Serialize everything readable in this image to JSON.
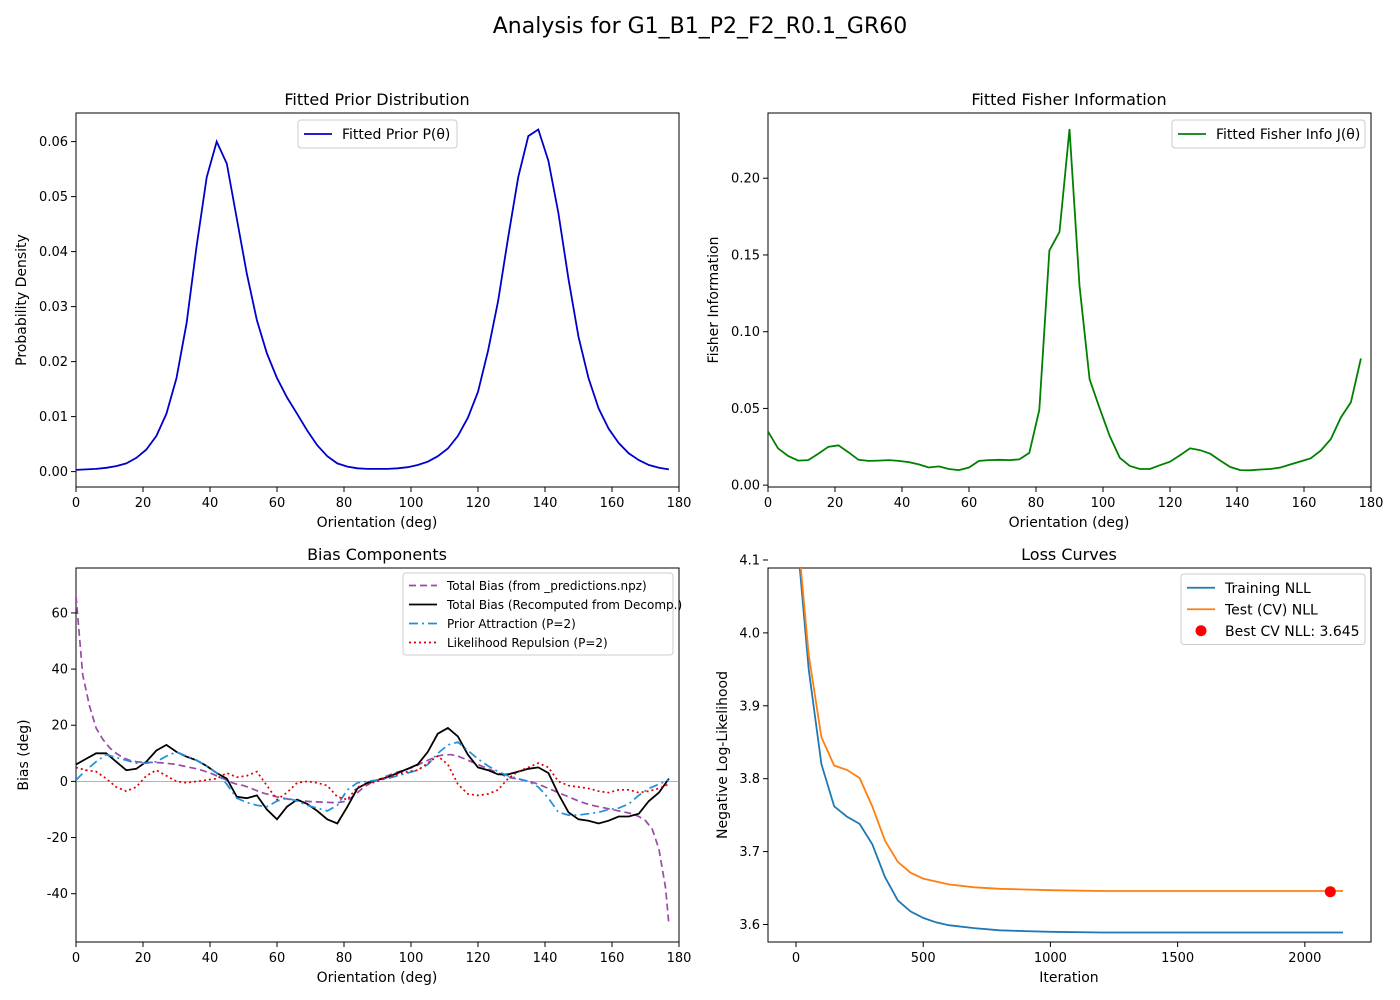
{
  "suptitle": "Analysis for G1_B1_P2_F2_R0.1_GR60",
  "chart_data": [
    {
      "type": "line",
      "title": "Fitted Prior Distribution",
      "xlabel": "Orientation (deg)",
      "ylabel": "Probability Density",
      "xlim": [
        0,
        180
      ],
      "ylim": [
        -0.0028,
        0.0652
      ],
      "xticks": [
        0,
        20,
        40,
        60,
        80,
        100,
        120,
        140,
        160,
        180
      ],
      "yticks": [
        0.0,
        0.01,
        0.02,
        0.03,
        0.04,
        0.05,
        0.06
      ],
      "ytick_decimals": 2,
      "grid": false,
      "legend": "top-center",
      "series": [
        {
          "name": "Fitted Prior P(θ)",
          "color": "#0000cc",
          "style": "solid",
          "x": [
            0,
            3,
            6,
            9,
            12,
            15,
            18,
            21,
            24,
            27,
            30,
            33,
            36,
            39,
            42,
            45,
            48,
            51,
            54,
            57,
            60,
            63,
            66,
            69,
            72,
            75,
            78,
            81,
            84,
            87,
            90,
            93,
            96,
            99,
            102,
            105,
            108,
            111,
            114,
            117,
            120,
            123,
            126,
            129,
            132,
            135,
            138,
            141,
            144,
            147,
            150,
            153,
            156,
            159,
            162,
            165,
            168,
            171,
            174,
            177
          ],
          "y": [
            0.0003,
            0.0004,
            0.0005,
            0.0007,
            0.001,
            0.0015,
            0.0025,
            0.004,
            0.0065,
            0.0105,
            0.017,
            0.027,
            0.041,
            0.0535,
            0.06,
            0.056,
            0.046,
            0.036,
            0.0275,
            0.0215,
            0.017,
            0.0135,
            0.0105,
            0.0075,
            0.0048,
            0.0028,
            0.0015,
            0.0009,
            0.0006,
            0.0005,
            0.0005,
            0.0005,
            0.0006,
            0.0008,
            0.0012,
            0.0018,
            0.0028,
            0.0042,
            0.0065,
            0.0098,
            0.0145,
            0.022,
            0.031,
            0.0425,
            0.0535,
            0.061,
            0.0622,
            0.0565,
            0.047,
            0.035,
            0.0245,
            0.017,
            0.0115,
            0.0078,
            0.0052,
            0.0033,
            0.0021,
            0.0012,
            0.0007,
            0.0004
          ]
        }
      ]
    },
    {
      "type": "line",
      "title": "Fitted Fisher Information",
      "xlabel": "Orientation (deg)",
      "ylabel": "Fisher Information",
      "xlim": [
        0,
        180
      ],
      "ylim": [
        -0.0012,
        0.2425
      ],
      "xticks": [
        0,
        20,
        40,
        60,
        80,
        100,
        120,
        140,
        160,
        180
      ],
      "yticks": [
        0.0,
        0.05,
        0.1,
        0.15,
        0.2
      ],
      "ytick_decimals": 2,
      "grid": false,
      "legend": "top-right",
      "series": [
        {
          "name": "Fitted Fisher Info J(θ)",
          "color": "#008000",
          "style": "solid",
          "x": [
            0,
            3,
            6,
            9,
            12,
            15,
            18,
            21,
            24,
            27,
            30,
            33,
            36,
            39,
            42,
            45,
            48,
            51,
            54,
            57,
            60,
            63,
            66,
            69,
            72,
            75,
            78,
            81,
            84,
            87,
            90,
            93,
            96,
            99,
            102,
            105,
            108,
            111,
            114,
            117,
            120,
            123,
            126,
            129,
            132,
            135,
            138,
            141,
            144,
            147,
            150,
            153,
            156,
            159,
            162,
            165,
            168,
            171,
            174,
            177
          ],
          "y": [
            0.035,
            0.024,
            0.019,
            0.016,
            0.0163,
            0.0205,
            0.025,
            0.026,
            0.0215,
            0.0165,
            0.0158,
            0.016,
            0.0163,
            0.0158,
            0.015,
            0.0135,
            0.0115,
            0.0122,
            0.0105,
            0.0098,
            0.0115,
            0.0158,
            0.0163,
            0.0165,
            0.0163,
            0.0168,
            0.021,
            0.049,
            0.153,
            0.165,
            0.232,
            0.13,
            0.069,
            0.05,
            0.032,
            0.0178,
            0.0125,
            0.0105,
            0.0105,
            0.013,
            0.0153,
            0.0195,
            0.024,
            0.0228,
            0.0205,
            0.016,
            0.0118,
            0.0098,
            0.0097,
            0.0102,
            0.0105,
            0.0115,
            0.0135,
            0.0155,
            0.0175,
            0.0225,
            0.03,
            0.044,
            0.054,
            0.0825
          ]
        }
      ]
    },
    {
      "type": "line",
      "title": "Bias Components",
      "xlabel": "Orientation (deg)",
      "ylabel": "Bias (deg)",
      "xlim": [
        0,
        180
      ],
      "ylim": [
        -57.2,
        76
      ],
      "xticks": [
        0,
        20,
        40,
        60,
        80,
        100,
        120,
        140,
        160,
        180
      ],
      "yticks": [
        -40,
        -20,
        0,
        20,
        40,
        60
      ],
      "ytick_decimals": 0,
      "grid": false,
      "zero_line": true,
      "legend": "top-right",
      "series": [
        {
          "name": "Total Bias (from _predictions.npz)",
          "color": "#9b4aa8",
          "style": "dashed",
          "x": [
            0,
            2,
            4,
            6,
            8,
            10,
            12,
            14,
            16,
            18,
            20,
            22,
            24,
            26,
            28,
            30,
            32,
            34,
            36,
            38,
            40,
            42,
            44,
            46,
            48,
            50,
            52,
            54,
            56,
            58,
            60,
            62,
            64,
            66,
            68,
            70,
            72,
            74,
            76,
            78,
            80,
            82,
            84,
            86,
            88,
            90,
            92,
            94,
            96,
            98,
            100,
            102,
            104,
            106,
            108,
            110,
            112,
            114,
            116,
            118,
            120,
            122,
            124,
            126,
            128,
            130,
            132,
            134,
            136,
            138,
            140,
            142,
            144,
            146,
            148,
            150,
            152,
            154,
            156,
            158,
            160,
            162,
            164,
            166,
            168,
            170,
            172,
            174,
            176,
            177
          ],
          "y": [
            66,
            38,
            27,
            19,
            15,
            12,
            10,
            8.5,
            7.5,
            7,
            6.8,
            6.8,
            6.7,
            6.6,
            6.3,
            6,
            5.5,
            5,
            4.5,
            3.8,
            3,
            2,
            1,
            -0.2,
            -1,
            -1.5,
            -2.3,
            -3.3,
            -4.2,
            -4.8,
            -5.5,
            -6,
            -6.5,
            -6.8,
            -7,
            -7.2,
            -7.3,
            -7.4,
            -7.5,
            -7.6,
            -7.2,
            -6,
            -4,
            -2,
            -0.5,
            0.5,
            1.5,
            2.5,
            3.3,
            4,
            4.8,
            5.8,
            7,
            8,
            9,
            9.5,
            9.5,
            9,
            8,
            7,
            6,
            5,
            4,
            3,
            2,
            1.2,
            0.8,
            0.3,
            -0.3,
            -1,
            -2,
            -3,
            -4,
            -5,
            -6,
            -7,
            -7.8,
            -8.5,
            -9,
            -9.5,
            -10,
            -10.5,
            -11,
            -11.5,
            -12.5,
            -14,
            -17,
            -24,
            -38,
            -51
          ]
        },
        {
          "name": "Total Bias (Recomputed from Decomp.)",
          "color": "#000000",
          "style": "solid",
          "x": [
            0,
            3,
            6,
            9,
            12,
            15,
            18,
            21,
            24,
            27,
            30,
            33,
            36,
            39,
            42,
            45,
            48,
            51,
            54,
            57,
            60,
            63,
            66,
            69,
            72,
            75,
            78,
            81,
            84,
            87,
            90,
            93,
            96,
            99,
            102,
            105,
            108,
            111,
            114,
            117,
            120,
            123,
            126,
            129,
            132,
            135,
            138,
            141,
            144,
            147,
            150,
            153,
            156,
            159,
            162,
            165,
            168,
            171,
            174,
            177
          ],
          "y": [
            6,
            8,
            10,
            10,
            7,
            4,
            4.5,
            7,
            11,
            13,
            10.5,
            8.8,
            7.5,
            5.5,
            3,
            1,
            -5.5,
            -6,
            -5,
            -10,
            -13.5,
            -9,
            -6.5,
            -8,
            -10.5,
            -13.5,
            -15,
            -9,
            -2.5,
            -0.5,
            0.5,
            1.5,
            3,
            4.5,
            6,
            10.5,
            17,
            19,
            16,
            9.5,
            5,
            4,
            2.5,
            2.5,
            3.5,
            4.5,
            5,
            3,
            -4.5,
            -11,
            -13.5,
            -14,
            -15,
            -14,
            -12.5,
            -12.5,
            -11.5,
            -7,
            -4,
            1
          ]
        },
        {
          "name": "Prior Attraction (P=2)",
          "color": "#1f8fe0",
          "style": "dashdot",
          "x": [
            0,
            3,
            6,
            9,
            12,
            15,
            18,
            21,
            24,
            27,
            30,
            33,
            36,
            39,
            42,
            45,
            48,
            51,
            54,
            57,
            60,
            63,
            66,
            69,
            72,
            75,
            78,
            81,
            84,
            87,
            90,
            93,
            96,
            99,
            102,
            105,
            108,
            111,
            114,
            117,
            120,
            123,
            126,
            129,
            132,
            135,
            138,
            141,
            144,
            147,
            150,
            153,
            156,
            159,
            162,
            165,
            168,
            171,
            174,
            177
          ],
          "y": [
            0.5,
            4,
            7,
            9.5,
            8.5,
            7.5,
            6.5,
            6.5,
            7,
            9,
            10.5,
            9,
            7.5,
            5.5,
            3,
            -1,
            -6,
            -7.5,
            -8.5,
            -9,
            -7,
            -6,
            -7,
            -8.5,
            -9.5,
            -10.5,
            -8.5,
            -3,
            -0.5,
            0,
            0.5,
            1,
            2,
            3,
            4,
            6,
            10,
            13,
            14,
            11,
            8,
            5.5,
            3.5,
            2,
            1,
            0,
            -2,
            -6,
            -11,
            -12,
            -12,
            -11.5,
            -11,
            -10,
            -9.5,
            -8,
            -5,
            -2.5,
            -1,
            0.5
          ]
        },
        {
          "name": "Likelihood Repulsion (P=2)",
          "color": "#dd0000",
          "style": "dotted",
          "x": [
            0,
            3,
            6,
            9,
            12,
            15,
            18,
            21,
            24,
            27,
            30,
            33,
            36,
            39,
            42,
            45,
            48,
            51,
            54,
            57,
            60,
            63,
            66,
            69,
            72,
            75,
            78,
            81,
            84,
            87,
            90,
            93,
            96,
            99,
            102,
            105,
            108,
            111,
            114,
            117,
            120,
            123,
            126,
            129,
            132,
            135,
            138,
            141,
            144,
            147,
            150,
            153,
            156,
            159,
            162,
            165,
            168,
            171,
            174,
            177
          ],
          "y": [
            5,
            4,
            3.5,
            1,
            -2,
            -3.5,
            -2,
            2,
            4,
            2,
            0,
            -0.5,
            0,
            0.5,
            1,
            3,
            1.5,
            2,
            3.5,
            -1.5,
            -6.5,
            -4,
            -0.5,
            0,
            -0.5,
            -1.5,
            -5.5,
            -6.5,
            -2,
            -1,
            0,
            1.5,
            2.5,
            3.5,
            4,
            6.5,
            9,
            6,
            -1,
            -4.5,
            -5,
            -4.5,
            -3,
            1,
            3.5,
            5,
            6.5,
            5,
            0,
            -1.5,
            -2,
            -2.5,
            -3.5,
            -4,
            -3,
            -3,
            -4,
            -3.5,
            -2.5,
            -1
          ]
        }
      ]
    },
    {
      "type": "line",
      "title": "Loss Curves",
      "xlabel": "Iteration",
      "ylabel": "Negative Log-Likelihood",
      "xlim": [
        -110,
        2260
      ],
      "ylim": [
        3.576,
        4.089
      ],
      "xticks": [
        0,
        500,
        1000,
        1500,
        2000
      ],
      "yticks": [
        3.6,
        3.7,
        3.8,
        3.9,
        4.0,
        4.1
      ],
      "ytick_decimals": 1,
      "grid": false,
      "legend": "top-right",
      "series": [
        {
          "name": "Training NLL",
          "color": "#1f77b4",
          "style": "solid",
          "x": [
            0,
            50,
            100,
            150,
            200,
            250,
            300,
            350,
            400,
            450,
            500,
            550,
            600,
            700,
            800,
            900,
            1000,
            1200,
            1400,
            1600,
            1800,
            2000,
            2150
          ],
          "y": [
            4.148,
            3.95,
            3.82,
            3.762,
            3.748,
            3.738,
            3.71,
            3.665,
            3.633,
            3.618,
            3.609,
            3.603,
            3.599,
            3.595,
            3.592,
            3.591,
            3.59,
            3.589,
            3.589,
            3.589,
            3.589,
            3.589,
            3.589
          ]
        },
        {
          "name": "Test (CV) NLL",
          "color": "#ff7f0e",
          "style": "solid",
          "x": [
            0,
            50,
            100,
            150,
            200,
            250,
            300,
            350,
            400,
            450,
            500,
            550,
            600,
            700,
            800,
            900,
            1000,
            1200,
            1400,
            1600,
            1800,
            2000,
            2150
          ],
          "y": [
            4.162,
            3.97,
            3.857,
            3.818,
            3.812,
            3.801,
            3.762,
            3.715,
            3.686,
            3.671,
            3.663,
            3.659,
            3.655,
            3.651,
            3.649,
            3.648,
            3.647,
            3.646,
            3.646,
            3.646,
            3.646,
            3.646,
            3.646
          ]
        },
        {
          "name": "Best CV NLL: 3.645",
          "color": "#ff0000",
          "style": "marker",
          "x": [
            2100
          ],
          "y": [
            3.645
          ]
        }
      ]
    }
  ]
}
